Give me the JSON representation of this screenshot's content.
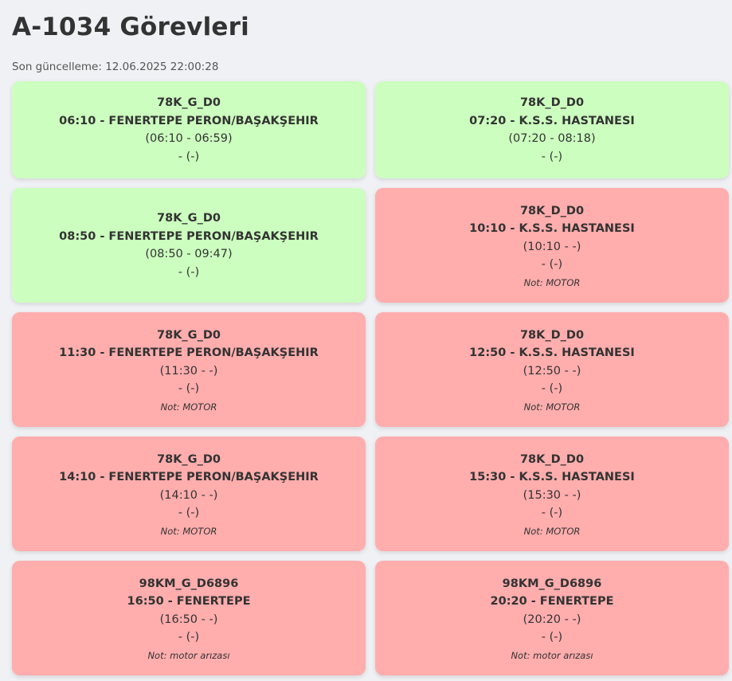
{
  "header": {
    "title": "A-1034 Görevleri",
    "last_update": "Son güncelleme: 12.06.2025 22:00:28"
  },
  "colors": {
    "completed": "#ccffbf",
    "failed": "#ffadad",
    "background": "#f0f1f5",
    "text": "#333333"
  },
  "tasks": [
    {
      "status": "completed",
      "route": "78K_G_D0",
      "trip": "06:10 - FENERTEPE PERON/BAŞAKŞEHIR",
      "range": "(06:10 - 06:59)",
      "extra": "- (-)",
      "note": ""
    },
    {
      "status": "completed",
      "route": "78K_D_D0",
      "trip": "07:20 - K.S.S. HASTANESI",
      "range": "(07:20 - 08:18)",
      "extra": "- (-)",
      "note": ""
    },
    {
      "status": "completed",
      "route": "78K_G_D0",
      "trip": "08:50 - FENERTEPE PERON/BAŞAKŞEHIR",
      "range": "(08:50 - 09:47)",
      "extra": "- (-)",
      "note": ""
    },
    {
      "status": "failed",
      "route": "78K_D_D0",
      "trip": "10:10 - K.S.S. HASTANESI",
      "range": "(10:10 - -)",
      "extra": "- (-)",
      "note": "Not: MOTOR"
    },
    {
      "status": "failed",
      "route": "78K_G_D0",
      "trip": "11:30 - FENERTEPE PERON/BAŞAKŞEHIR",
      "range": "(11:30 - -)",
      "extra": "- (-)",
      "note": "Not: MOTOR"
    },
    {
      "status": "failed",
      "route": "78K_D_D0",
      "trip": "12:50 - K.S.S. HASTANESI",
      "range": "(12:50 - -)",
      "extra": "- (-)",
      "note": "Not: MOTOR"
    },
    {
      "status": "failed",
      "route": "78K_G_D0",
      "trip": "14:10 - FENERTEPE PERON/BAŞAKŞEHIR",
      "range": "(14:10 - -)",
      "extra": "- (-)",
      "note": "Not: MOTOR"
    },
    {
      "status": "failed",
      "route": "78K_D_D0",
      "trip": "15:30 - K.S.S. HASTANESI",
      "range": "(15:30 - -)",
      "extra": "- (-)",
      "note": "Not: MOTOR"
    },
    {
      "status": "failed",
      "route": "98KM_G_D6896",
      "trip": "16:50 - FENERTEPE",
      "range": "(16:50 - -)",
      "extra": "- (-)",
      "note": "Not: motor arızası"
    },
    {
      "status": "failed",
      "route": "98KM_G_D6896",
      "trip": "20:20 - FENERTEPE",
      "range": "(20:20 - -)",
      "extra": "- (-)",
      "note": "Not: motor arızası"
    }
  ]
}
